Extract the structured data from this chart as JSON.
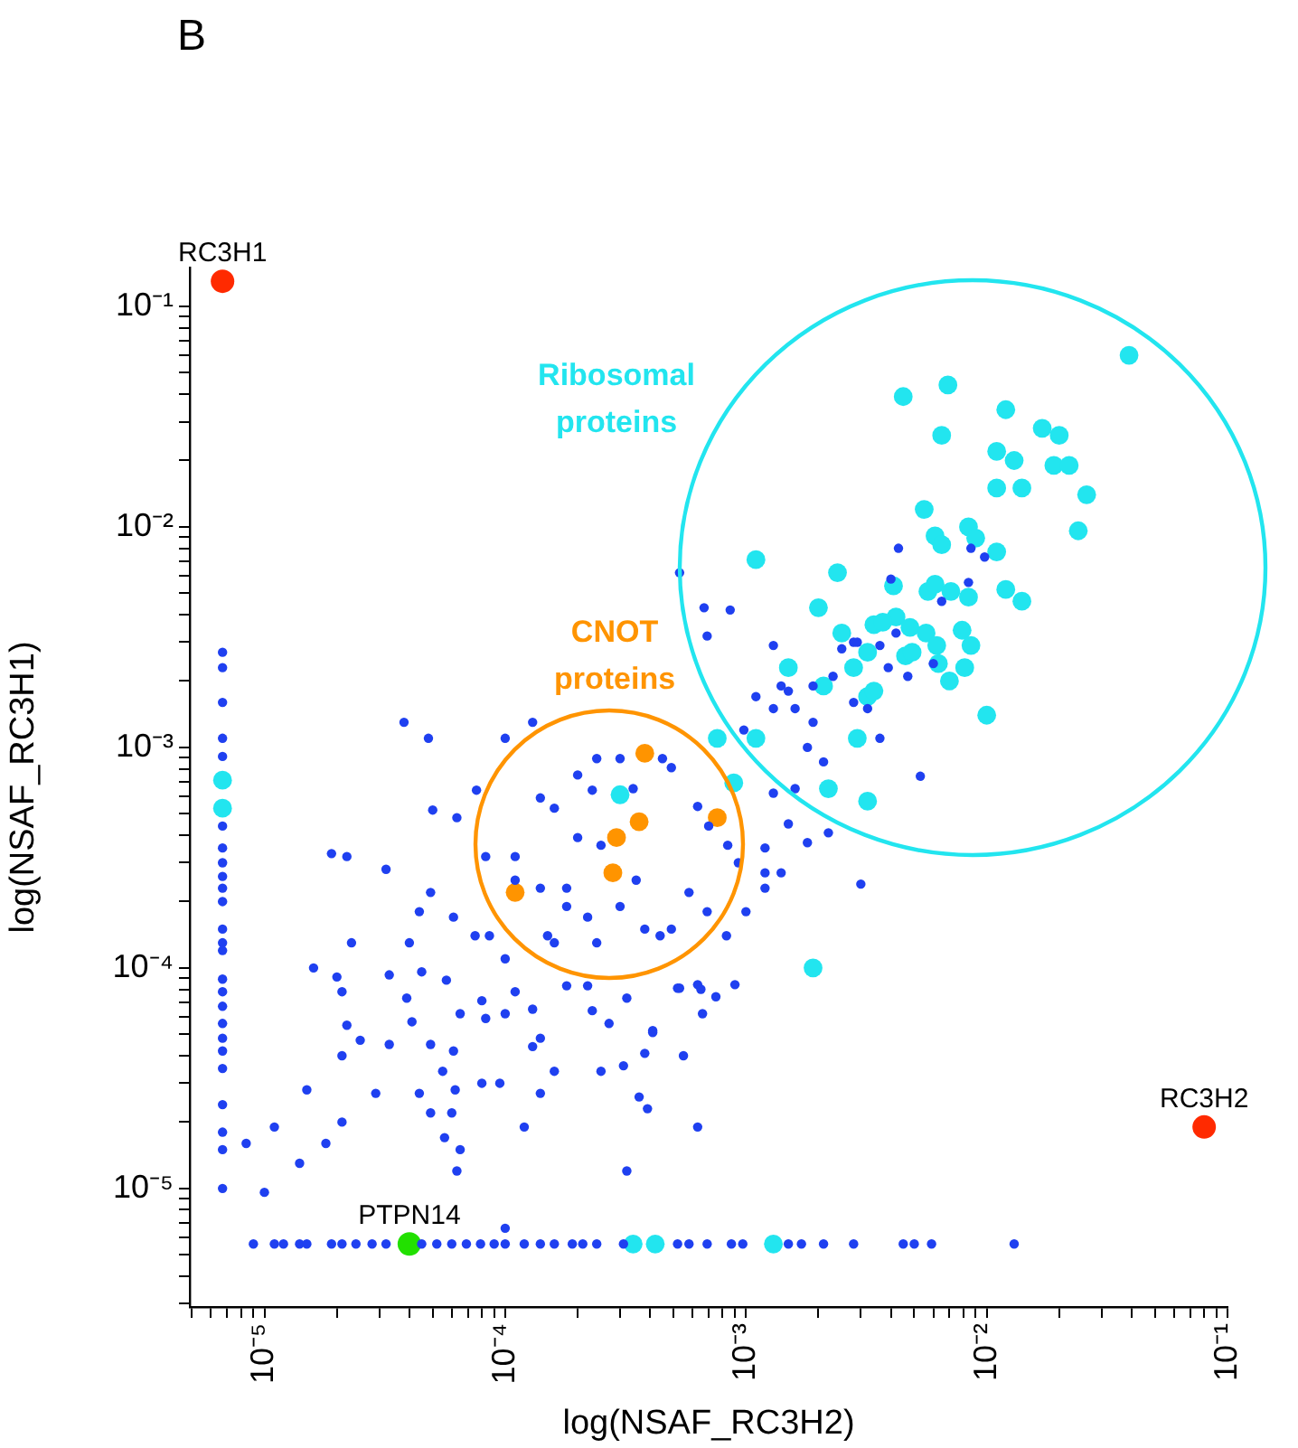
{
  "chart_data": {
    "type": "scatter",
    "title": "B",
    "xlabel": "log(NSAF_RC3H2)",
    "ylabel": "log(NSAF_RC3H1)",
    "log": "xy",
    "marker": "circle",
    "xlim": [
      4.9e-06,
      0.1
    ],
    "ylim": [
      2.9e-06,
      0.15
    ],
    "xticks": [
      {
        "value": 5e-06,
        "label": null
      },
      {
        "value": 6e-06,
        "label": null
      },
      {
        "value": 7e-06,
        "label": null
      },
      {
        "value": 8e-06,
        "label": null
      },
      {
        "value": 9e-06,
        "label": null
      },
      {
        "value": 1e-05,
        "label": "10⁻⁵"
      },
      {
        "value": 2e-05,
        "label": null
      },
      {
        "value": 3e-05,
        "label": null
      },
      {
        "value": 4e-05,
        "label": null
      },
      {
        "value": 5e-05,
        "label": null
      },
      {
        "value": 6e-05,
        "label": null
      },
      {
        "value": 7e-05,
        "label": null
      },
      {
        "value": 8e-05,
        "label": null
      },
      {
        "value": 9e-05,
        "label": null
      },
      {
        "value": 0.0001,
        "label": "10⁻⁴"
      },
      {
        "value": 0.0002,
        "label": null
      },
      {
        "value": 0.0003,
        "label": null
      },
      {
        "value": 0.0004,
        "label": null
      },
      {
        "value": 0.0005,
        "label": null
      },
      {
        "value": 0.0006,
        "label": null
      },
      {
        "value": 0.0007,
        "label": null
      },
      {
        "value": 0.0008,
        "label": null
      },
      {
        "value": 0.0009,
        "label": null
      },
      {
        "value": 0.001,
        "label": "10⁻³"
      },
      {
        "value": 0.002,
        "label": null
      },
      {
        "value": 0.003,
        "label": null
      },
      {
        "value": 0.004,
        "label": null
      },
      {
        "value": 0.005,
        "label": null
      },
      {
        "value": 0.006,
        "label": null
      },
      {
        "value": 0.007,
        "label": null
      },
      {
        "value": 0.008,
        "label": null
      },
      {
        "value": 0.009,
        "label": null
      },
      {
        "value": 0.01,
        "label": "10⁻²"
      },
      {
        "value": 0.02,
        "label": null
      },
      {
        "value": 0.03,
        "label": null
      },
      {
        "value": 0.04,
        "label": null
      },
      {
        "value": 0.05,
        "label": null
      },
      {
        "value": 0.06,
        "label": null
      },
      {
        "value": 0.07,
        "label": null
      },
      {
        "value": 0.08,
        "label": null
      },
      {
        "value": 0.09,
        "label": null
      },
      {
        "value": 0.1,
        "label": "10⁻¹"
      }
    ],
    "yticks": [
      {
        "value": 3e-06,
        "label": null
      },
      {
        "value": 4e-06,
        "label": null
      },
      {
        "value": 5e-06,
        "label": null
      },
      {
        "value": 6e-06,
        "label": null
      },
      {
        "value": 7e-06,
        "label": null
      },
      {
        "value": 8e-06,
        "label": null
      },
      {
        "value": 9e-06,
        "label": null
      },
      {
        "value": 1e-05,
        "label": "10⁻⁵"
      },
      {
        "value": 2e-05,
        "label": null
      },
      {
        "value": 3e-05,
        "label": null
      },
      {
        "value": 4e-05,
        "label": null
      },
      {
        "value": 5e-05,
        "label": null
      },
      {
        "value": 6e-05,
        "label": null
      },
      {
        "value": 7e-05,
        "label": null
      },
      {
        "value": 8e-05,
        "label": null
      },
      {
        "value": 9e-05,
        "label": null
      },
      {
        "value": 0.0001,
        "label": "10⁻⁴"
      },
      {
        "value": 0.0002,
        "label": null
      },
      {
        "value": 0.0003,
        "label": null
      },
      {
        "value": 0.0004,
        "label": null
      },
      {
        "value": 0.0005,
        "label": null
      },
      {
        "value": 0.0006,
        "label": null
      },
      {
        "value": 0.0007,
        "label": null
      },
      {
        "value": 0.0008,
        "label": null
      },
      {
        "value": 0.0009,
        "label": null
      },
      {
        "value": 0.001,
        "label": "10⁻³"
      },
      {
        "value": 0.002,
        "label": null
      },
      {
        "value": 0.003,
        "label": null
      },
      {
        "value": 0.004,
        "label": null
      },
      {
        "value": 0.005,
        "label": null
      },
      {
        "value": 0.006,
        "label": null
      },
      {
        "value": 0.007,
        "label": null
      },
      {
        "value": 0.008,
        "label": null
      },
      {
        "value": 0.009,
        "label": null
      },
      {
        "value": 0.01,
        "label": "10⁻²"
      },
      {
        "value": 0.02,
        "label": null
      },
      {
        "value": 0.03,
        "label": null
      },
      {
        "value": 0.04,
        "label": null
      },
      {
        "value": 0.05,
        "label": null
      },
      {
        "value": 0.06,
        "label": null
      },
      {
        "value": 0.07,
        "label": null
      },
      {
        "value": 0.08,
        "label": null
      },
      {
        "value": 0.09,
        "label": null
      },
      {
        "value": 0.1,
        "label": "10⁻¹"
      }
    ],
    "series": [
      {
        "color": "#1f40f0",
        "x": [
          6.7e-06,
          6.7e-06,
          6.7e-06,
          6.7e-06,
          6.7e-06,
          6.7e-06,
          6.7e-06,
          6.7e-06,
          6.7e-06,
          6.7e-06,
          6.7e-06,
          6.7e-06,
          6.7e-06,
          6.7e-06,
          6.7e-06,
          6.7e-06,
          6.7e-06,
          6.7e-06,
          6.7e-06,
          6.7e-06,
          6.7e-06,
          6.7e-06,
          6.7e-06,
          6.7e-06,
          6.7e-06,
          9e-06,
          1.1e-05,
          1.2e-05,
          1.4e-05,
          1.5e-05,
          1.9e-05,
          2.1e-05,
          2.4e-05,
          2.8e-05,
          3.2e-05,
          4.5e-05,
          5.2e-05,
          6e-05,
          6.9e-05,
          7.9e-05,
          9e-05,
          0.0001,
          0.00012,
          0.00014,
          0.00016,
          0.00019,
          0.00021,
          0.00024,
          0.00031,
          0.00052,
          0.00058,
          0.00069,
          0.00087,
          0.00097,
          0.0015,
          0.0017,
          0.0021,
          0.0028,
          0.0045,
          0.005,
          0.0059,
          0.013,
          1.9e-05,
          2.2e-05,
          3.2e-05,
          4.9e-05,
          4.4e-05,
          6.1e-05,
          2.3e-05,
          1.6e-05,
          2e-05,
          2.1e-05,
          3.3e-05,
          4e-05,
          4.5e-05,
          3.9e-05,
          5.7e-05,
          7.5e-05,
          8.6e-05,
          0.0001,
          0.00011,
          8e-05,
          6.5e-05,
          8.3e-05,
          0.0001,
          2.2e-05,
          2.5e-05,
          2.1e-05,
          3.3e-05,
          4.1e-05,
          4.9e-05,
          6.1e-05,
          5.5e-05,
          6.2e-05,
          4.4e-05,
          4.9e-05,
          6e-05,
          2.9e-05,
          2.1e-05,
          1.8e-05,
          1.4e-05,
          1.1e-05,
          8.4e-06,
          1e-05,
          1.5e-05,
          5.6e-05,
          6.5e-05,
          6.3e-05,
          0.0001,
          8e-05,
          9.5e-05,
          0.00012,
          0.00014,
          0.00016,
          0.00013,
          0.00014,
          0.00013,
          0.00018,
          0.00022,
          0.00023,
          0.00027,
          0.00025,
          0.00031,
          0.00036,
          0.00039,
          0.00032,
          0.00032,
          0.00041,
          0.00038,
          0.00055,
          0.00063,
          0.00052,
          0.00063,
          0.00066,
          0.00075,
          0.00011,
          0.00011,
          0.00014,
          0.0002,
          0.00025,
          0.00015,
          0.00016,
          0.00024,
          0.0003,
          0.00038,
          0.00044,
          0.00049,
          0.00058,
          0.00069,
          0.00022,
          0.00018,
          0.00035,
          0.00018,
          3.8e-05,
          4.8e-05,
          5e-05,
          6.3e-05,
          7.6e-05,
          0.0001,
          0.00013,
          8.3e-05,
          0.00014,
          0.00016,
          0.0002,
          0.00024,
          0.0003,
          0.00023,
          0.00034,
          0.00045,
          0.00049,
          0.00063,
          0.0007,
          0.00084,
          0.00093,
          0.001,
          0.0012,
          0.0012,
          0.0014,
          0.0018,
          0.0015,
          0.0013,
          0.0022,
          0.003,
          0.00083,
          0.0009,
          0.00065,
          0.00053,
          0.00041,
          0.00053,
          0.00067,
          0.00086,
          0.00069,
          0.0013,
          0.0015,
          0.0013,
          0.0011,
          0.0016,
          0.00098,
          0.0018,
          0.0019,
          0.0028,
          0.0032,
          0.0036,
          0.0025,
          0.0028,
          0.0042,
          0.0023,
          0.0019,
          0.0014,
          0.0043,
          0.0086,
          0.0098,
          0.004,
          0.0084,
          0.0065,
          0.0029,
          0.0036,
          0.0039,
          0.0047,
          0.006,
          0.0053,
          0.0021,
          0.0016,
          0.0012
        ],
        "values": [
          0.0027,
          0.0023,
          0.0016,
          0.0011,
          0.00091,
          0.00044,
          0.00035,
          0.0003,
          0.00026,
          0.00023,
          0.0002,
          0.00015,
          0.00013,
          0.00012,
          8.9e-05,
          7.8e-05,
          6.7e-05,
          5.6e-05,
          4.8e-05,
          4.2e-05,
          3.5e-05,
          2.4e-05,
          1.8e-05,
          1.5e-05,
          1e-05,
          5.6e-06,
          5.6e-06,
          5.6e-06,
          5.6e-06,
          5.6e-06,
          5.6e-06,
          5.6e-06,
          5.6e-06,
          5.6e-06,
          5.6e-06,
          5.6e-06,
          5.6e-06,
          5.6e-06,
          5.6e-06,
          5.6e-06,
          5.6e-06,
          5.6e-06,
          5.6e-06,
          5.6e-06,
          5.6e-06,
          5.6e-06,
          5.6e-06,
          5.6e-06,
          5.6e-06,
          5.6e-06,
          5.6e-06,
          5.6e-06,
          5.6e-06,
          5.6e-06,
          5.6e-06,
          5.6e-06,
          5.6e-06,
          5.6e-06,
          5.6e-06,
          5.6e-06,
          5.6e-06,
          5.6e-06,
          0.00033,
          0.00032,
          0.00028,
          0.00022,
          0.00018,
          0.00017,
          0.00013,
          0.0001,
          9.1e-05,
          7.8e-05,
          9.3e-05,
          0.00013,
          9.6e-05,
          7.3e-05,
          8.8e-05,
          0.00014,
          0.00014,
          0.00011,
          7.8e-05,
          7.1e-05,
          6.2e-05,
          5.9e-05,
          6.2e-05,
          5.5e-05,
          4.7e-05,
          4e-05,
          4.5e-05,
          5.7e-05,
          4.5e-05,
          4.2e-05,
          3.4e-05,
          2.8e-05,
          2.7e-05,
          2.2e-05,
          2.2e-05,
          2.7e-05,
          2e-05,
          1.6e-05,
          1.3e-05,
          1.9e-05,
          1.6e-05,
          9.6e-06,
          2.8e-05,
          1.7e-05,
          1.5e-05,
          1.2e-05,
          6.6e-06,
          3e-05,
          3e-05,
          1.9e-05,
          2.7e-05,
          3.4e-05,
          4.4e-05,
          4.8e-05,
          6.5e-05,
          8.3e-05,
          8.3e-05,
          6.4e-05,
          5.6e-05,
          3.4e-05,
          3.6e-05,
          2.6e-05,
          2.3e-05,
          1.2e-05,
          7.3e-05,
          5.2e-05,
          4.1e-05,
          4e-05,
          1.9e-05,
          8.1e-05,
          8.4e-05,
          6.2e-05,
          7.4e-05,
          0.00032,
          0.00025,
          0.00023,
          0.00039,
          0.00036,
          0.00014,
          0.00013,
          0.00013,
          0.00019,
          0.00015,
          0.00014,
          0.00015,
          0.00022,
          0.00018,
          0.00017,
          0.00019,
          0.00025,
          0.00023,
          0.0013,
          0.0011,
          0.00052,
          0.00048,
          0.00064,
          0.0011,
          0.0013,
          0.00032,
          0.00059,
          0.00053,
          0.00075,
          0.00089,
          0.00089,
          0.00064,
          0.00065,
          0.00089,
          0.00081,
          0.00054,
          0.00044,
          0.00036,
          0.0003,
          0.00018,
          0.00027,
          0.00023,
          0.00027,
          0.00037,
          0.00045,
          0.00062,
          0.00041,
          0.00024,
          0.00014,
          8.4e-05,
          8e-05,
          8.1e-05,
          5.1e-05,
          0.0062,
          0.0043,
          0.0042,
          0.0032,
          0.0029,
          0.0018,
          0.0015,
          0.0017,
          0.0015,
          0.0012,
          0.001,
          0.0013,
          0.0016,
          0.0015,
          0.0011,
          0.0028,
          0.003,
          0.0033,
          0.0021,
          0.0019,
          0.0019,
          0.008,
          0.008,
          0.0073,
          0.0058,
          0.0056,
          0.0046,
          0.003,
          0.0029,
          0.0023,
          0.0021,
          0.0024,
          0.00074,
          0.00086,
          0.00065,
          0.00035
        ]
      },
      {
        "color": "#22e5ef",
        "x": [
          0.039,
          0.0069,
          0.0045,
          0.012,
          0.017,
          0.02,
          0.0065,
          0.011,
          0.013,
          0.019,
          0.022,
          0.011,
          0.014,
          0.026,
          0.024,
          0.0055,
          0.0084,
          0.009,
          0.0061,
          0.0065,
          0.011,
          0.0011,
          0.0024,
          0.0041,
          0.0057,
          0.0061,
          0.0071,
          0.0084,
          0.012,
          0.014,
          0.002,
          0.0042,
          0.0034,
          0.0037,
          0.0048,
          0.0056,
          0.0079,
          0.0025,
          0.0062,
          0.0086,
          0.0032,
          0.0046,
          0.0049,
          0.0028,
          0.0063,
          0.0081,
          0.007,
          0.0015,
          0.0021,
          0.0032,
          0.0034,
          0.01,
          0.00076,
          0.0011,
          0.0029,
          0.00089,
          0.0022,
          0.0032,
          0.0003,
          0.0019,
          6.7e-06,
          6.7e-06,
          0.00034,
          0.00042,
          0.0013
        ],
        "values": [
          0.06,
          0.044,
          0.039,
          0.034,
          0.028,
          0.026,
          0.026,
          0.022,
          0.02,
          0.019,
          0.019,
          0.015,
          0.015,
          0.014,
          0.0096,
          0.012,
          0.01,
          0.0089,
          0.0091,
          0.0083,
          0.0077,
          0.0071,
          0.0062,
          0.0054,
          0.0051,
          0.0055,
          0.0051,
          0.0048,
          0.0052,
          0.0046,
          0.0043,
          0.0039,
          0.0036,
          0.0037,
          0.0035,
          0.0033,
          0.0034,
          0.0033,
          0.0029,
          0.0029,
          0.0027,
          0.0026,
          0.0027,
          0.0023,
          0.0024,
          0.0023,
          0.002,
          0.0023,
          0.0019,
          0.0017,
          0.0018,
          0.0014,
          0.0011,
          0.0011,
          0.0011,
          0.00069,
          0.00065,
          0.00057,
          0.00061,
          0.0001,
          0.00071,
          0.00053,
          5.6e-06,
          5.6e-06,
          5.6e-06
        ]
      },
      {
        "color": "#ff9400",
        "x": [
          0.00038,
          0.00076,
          0.00036,
          0.00029,
          0.00028,
          0.00011
        ],
        "values": [
          0.00094,
          0.00048,
          0.00046,
          0.00039,
          0.00027,
          0.00022
        ]
      },
      {
        "color": "#ff2a00",
        "x": [
          6.7e-06,
          0.08
        ],
        "values": [
          0.13,
          1.9e-05
        ]
      },
      {
        "color": "#22e000",
        "x": [
          4e-05
        ],
        "values": [
          5.6e-06
        ]
      }
    ],
    "annotations": [
      "Ribosomal proteins",
      "CNOT proteins",
      {
        "text": "RC3H1",
        "x": 6.7e-06,
        "y": 0.13
      },
      {
        "text": "RC3H2",
        "x": 0.08,
        "y": 1.9e-05
      },
      {
        "text": "PTPN14",
        "x": 4e-05,
        "y": 5.6e-06
      }
    ]
  }
}
